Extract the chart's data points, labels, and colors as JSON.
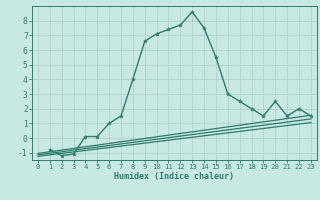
{
  "title": "",
  "xlabel": "Humidex (Indice chaleur)",
  "xlim": [
    -0.5,
    23.5
  ],
  "ylim": [
    -1.5,
    9.0
  ],
  "background_color": "#c8e8e4",
  "line_color": "#2e7d6e",
  "xticks": [
    0,
    1,
    2,
    3,
    4,
    5,
    6,
    7,
    8,
    9,
    10,
    11,
    12,
    13,
    14,
    15,
    16,
    17,
    18,
    19,
    20,
    21,
    22,
    23
  ],
  "yticks": [
    -1,
    0,
    1,
    2,
    3,
    4,
    5,
    6,
    7,
    8
  ],
  "main_x": [
    1,
    2,
    3,
    4,
    5,
    6,
    7,
    8,
    9,
    10,
    11,
    12,
    13,
    14,
    15,
    16,
    17,
    18,
    19,
    20,
    21,
    22,
    23
  ],
  "main_y": [
    -0.8,
    -1.2,
    -1.1,
    0.1,
    0.1,
    1.0,
    1.5,
    4.0,
    6.6,
    7.1,
    7.4,
    7.7,
    8.6,
    7.5,
    5.5,
    3.0,
    2.5,
    2.0,
    1.5,
    2.5,
    1.5,
    2.0,
    1.5
  ],
  "line2_x": [
    0,
    23
  ],
  "line2_y": [
    -1.05,
    1.55
  ],
  "line3_x": [
    0,
    23
  ],
  "line3_y": [
    -1.15,
    1.3
  ],
  "line4_x": [
    0,
    23
  ],
  "line4_y": [
    -1.25,
    1.05
  ]
}
